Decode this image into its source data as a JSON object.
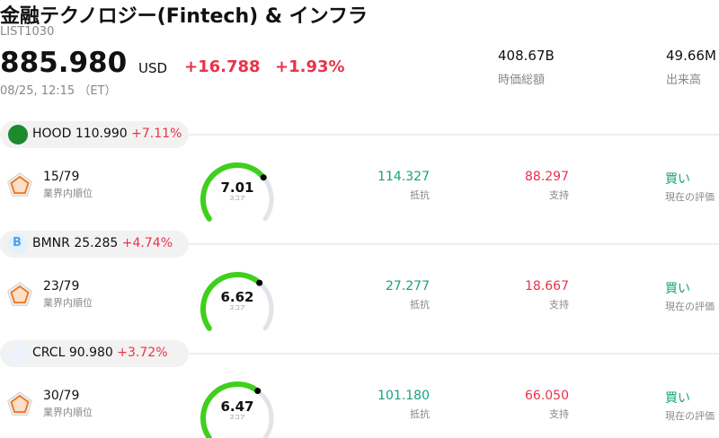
{
  "header": {
    "title": "金融テクノロジー(Fintech) & インフラ",
    "code": "LIST1030",
    "price": "885.980",
    "currency": "USD",
    "change": "+16.788",
    "change_pct": "+1.93%",
    "time": "08/25, 12:15 （ET）",
    "stats": [
      {
        "value": "408.67B",
        "label": "時価総額"
      },
      {
        "value": "49.66M",
        "label": "出来高"
      }
    ]
  },
  "stocks": [
    {
      "ticker": "HOOD",
      "price": "110.990",
      "change": "+7.11%",
      "rank": "15/79",
      "rank_label": "業界内順位",
      "score": 7.01,
      "score_label": "スコア",
      "resistance": "114.327",
      "resistance_label": "抵抗",
      "support": "88.297",
      "support_label": "支持",
      "rating": "買い",
      "rating_label": "現在の評価"
    },
    {
      "ticker": "BMNR",
      "logo_text": "B",
      "price": "25.285",
      "change": "+4.74%",
      "rank": "23/79",
      "rank_label": "業界内順位",
      "score": 6.62,
      "score_label": "スコア",
      "resistance": "27.277",
      "resistance_label": "抵抗",
      "support": "18.667",
      "support_label": "支持",
      "rating": "買い",
      "rating_label": "現在の評価"
    },
    {
      "ticker": "CRCL",
      "price": "90.980",
      "change": "+3.72%",
      "rank": "30/79",
      "rank_label": "業界内順位",
      "score": 6.47,
      "score_label": "スコア",
      "resistance": "101.180",
      "resistance_label": "抵抗",
      "support": "66.050",
      "support_label": "支持",
      "rating": "買い",
      "rating_label": "現在の評価"
    }
  ]
}
